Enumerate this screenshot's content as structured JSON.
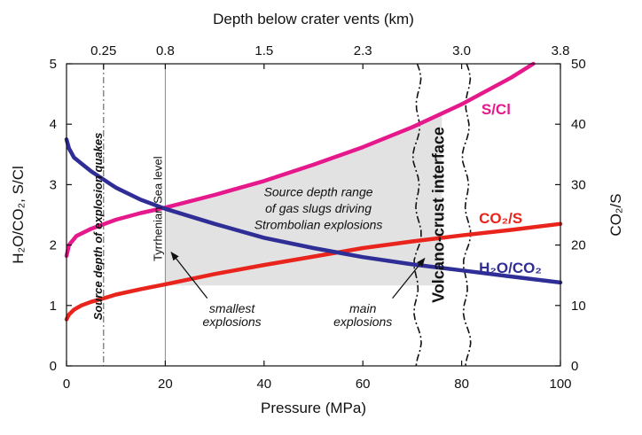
{
  "chart_data": {
    "type": "line",
    "xlabel": "Pressure (MPa)",
    "x2label": "Depth below crater vents (km)",
    "ylabel_left": "H2O/CO2, S/Cl",
    "ylabel_right": "CO2/S",
    "xlim": [
      0,
      100
    ],
    "ylim_left": [
      0,
      5
    ],
    "ylim_right": [
      0,
      50
    ],
    "x_ticks": [
      {
        "value": 0,
        "label": "0"
      },
      {
        "value": 20,
        "label": "20"
      },
      {
        "value": 40,
        "label": "40"
      },
      {
        "value": 60,
        "label": "60"
      },
      {
        "value": 80,
        "label": "80"
      },
      {
        "value": 100,
        "label": "100"
      }
    ],
    "y_left_ticks": [
      {
        "value": 0,
        "label": "0"
      },
      {
        "value": 1,
        "label": "1"
      },
      {
        "value": 2,
        "label": "2"
      },
      {
        "value": 3,
        "label": "3"
      },
      {
        "value": 4,
        "label": "4"
      },
      {
        "value": 5,
        "label": "5"
      }
    ],
    "y_right_ticks": [
      {
        "value": 0,
        "label": "0"
      },
      {
        "value": 10,
        "label": "10"
      },
      {
        "value": 20,
        "label": "20"
      },
      {
        "value": 30,
        "label": "30"
      },
      {
        "value": 40,
        "label": "40"
      },
      {
        "value": 50,
        "label": "50"
      }
    ],
    "top_ticks": [
      {
        "pressure": 7.5,
        "label": "0.25"
      },
      {
        "pressure": 20,
        "label": "0.8"
      },
      {
        "pressure": 40,
        "label": "1.5"
      },
      {
        "pressure": 60,
        "label": "2.3"
      },
      {
        "pressure": 80,
        "label": "3.0"
      },
      {
        "pressure": 100,
        "label": "3.8"
      }
    ],
    "series": [
      {
        "name": "S/Cl",
        "axis": "left",
        "color": "#e6198c",
        "x": [
          0,
          0.5,
          2,
          5,
          10,
          15,
          20,
          30,
          40,
          50,
          60,
          70,
          80,
          90,
          94.5
        ],
        "y": [
          1.82,
          2.0,
          2.15,
          2.27,
          2.42,
          2.53,
          2.62,
          2.83,
          3.06,
          3.33,
          3.62,
          3.95,
          4.33,
          4.77,
          5.0
        ]
      },
      {
        "name": "CO2/S",
        "axis": "right",
        "color": "#e8241c",
        "x": [
          0,
          0.5,
          1.5,
          3,
          5,
          8,
          10,
          15,
          20,
          30,
          40,
          50,
          60,
          70,
          80,
          90,
          100
        ],
        "y": [
          7.7,
          8.5,
          9.3,
          10.0,
          10.6,
          11.3,
          11.8,
          12.7,
          13.5,
          15.2,
          16.7,
          18.1,
          19.5,
          20.6,
          21.6,
          22.5,
          23.5
        ]
      },
      {
        "name": "H2O/CO2",
        "axis": "left",
        "color": "#2e2e96",
        "x": [
          0,
          0.5,
          1.5,
          3,
          5,
          10,
          15,
          20,
          30,
          40,
          50,
          60,
          70,
          80,
          90,
          100
        ],
        "y": [
          3.75,
          3.6,
          3.45,
          3.35,
          3.22,
          2.95,
          2.75,
          2.6,
          2.35,
          2.12,
          1.95,
          1.8,
          1.68,
          1.58,
          1.48,
          1.38
        ]
      }
    ],
    "series_labels": [
      {
        "text": "S/Cl"
      },
      {
        "text": "CO₂/S"
      },
      {
        "text": "H₂O/CO₂"
      }
    ],
    "left_axis_title": "H₂O/CO₂, S/Cl",
    "right_axis_title": "CO₂/S",
    "shaded_region": {
      "label_lines": [
        "Source depth range",
        "of gas slugs driving",
        "Strombolian explosions"
      ],
      "color": "#e2e2e2"
    },
    "annotations": {
      "quakes_label": "Source depth of explosion quakes",
      "quakes_pressure": 7.5,
      "sea_level_label": "Tyrrhenian Sea level",
      "sea_level_pressure": 20,
      "interface_label": "Volcano-crust interface",
      "interface_pressure_range": [
        71,
        81
      ],
      "smallest_lines": [
        "smallest",
        "explosions"
      ],
      "main_lines": [
        "main",
        "explosions"
      ]
    }
  }
}
